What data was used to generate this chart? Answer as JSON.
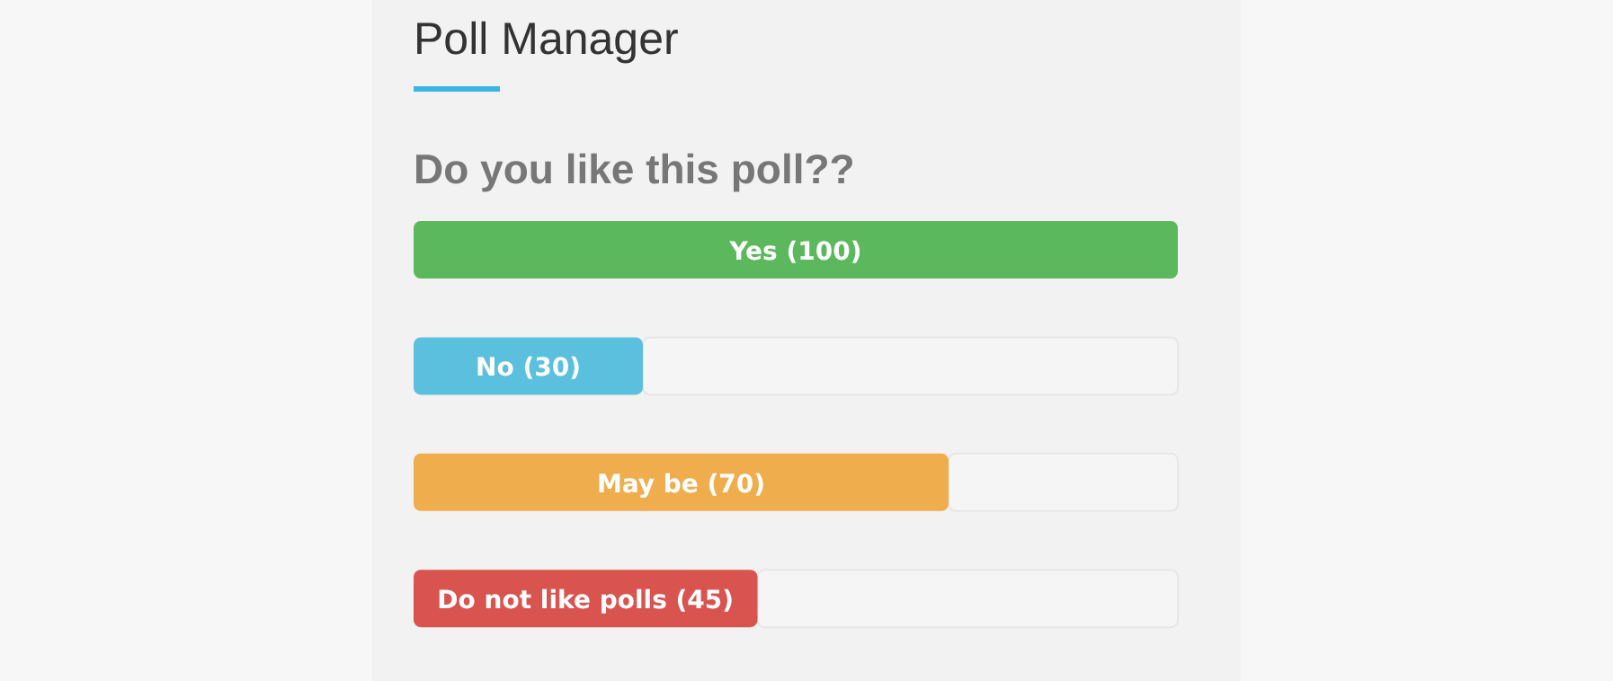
{
  "chart_data": {
    "type": "bar",
    "orientation": "horizontal",
    "title": "Poll Manager",
    "subtitle": "Do you like this poll??",
    "categories": [
      null,
      null,
      null,
      null
    ],
    "values": [
      100,
      30,
      70,
      45
    ],
    "colors": [
      "#5cb85c",
      "#5bc0de",
      "#f0ad4e",
      "#d9534f"
    ],
    "value_labels": [
      "Yes (100)",
      "No (30)",
      "May be (70)",
      "Do not like polls (45)"
    ],
    "xlim": [
      0,
      100
    ]
  }
}
